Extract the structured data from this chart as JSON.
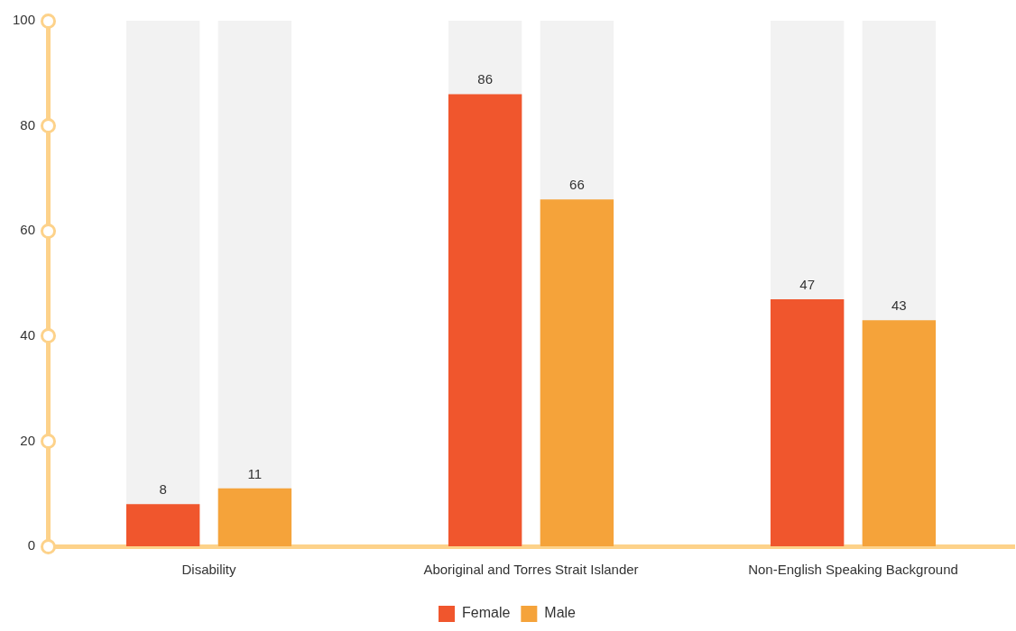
{
  "chart_data": {
    "type": "bar",
    "categories": [
      "Disability",
      "Aboriginal and Torres Strait Islander",
      "Non-English Speaking Background"
    ],
    "series": [
      {
        "name": "Female",
        "color": "#f0562d",
        "values": [
          8,
          86,
          47
        ]
      },
      {
        "name": "Male",
        "color": "#f5a33a",
        "values": [
          11,
          66,
          43
        ]
      }
    ],
    "ylim": [
      0,
      100
    ],
    "yticks": [
      0,
      20,
      40,
      60,
      80,
      100
    ],
    "grid": false,
    "legend": "bottom",
    "data_labels": true
  }
}
